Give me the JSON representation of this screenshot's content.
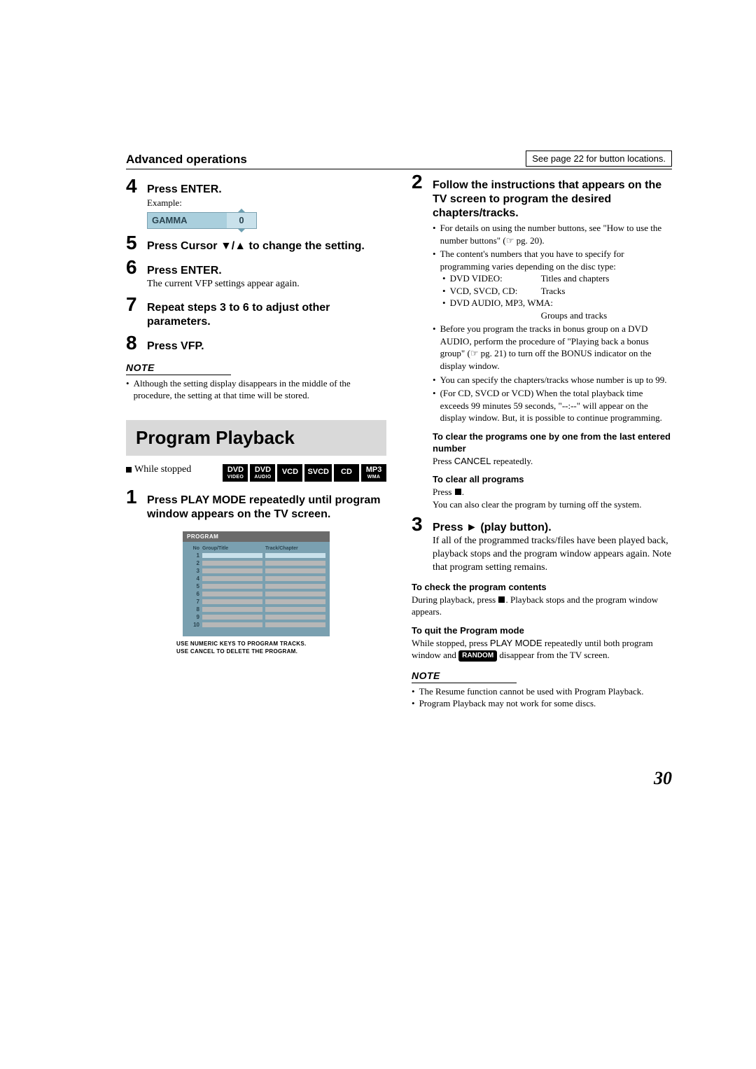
{
  "header": {
    "section": "Advanced operations",
    "button_ref": "See page 22 for button locations."
  },
  "left": {
    "steps": {
      "s4_title": "Press ENTER.",
      "s4_example_label": "Example:",
      "s4_gamma_label": "GAMMA",
      "s4_gamma_value": "0",
      "s5_title": "Press Cursor ▼/▲ to change the setting.",
      "s6_title": "Press ENTER.",
      "s6_body": "The current VFP settings appear again.",
      "s7_title": "Repeat steps 3 to 6 to adjust other parameters.",
      "s8_title": "Press VFP."
    },
    "note_label": "NOTE",
    "note_text": "Although the setting display disappears in the middle of the procedure, the setting at that time will be stored.",
    "program": {
      "box_title": "Program Playback",
      "while_stopped": "While stopped",
      "badges": {
        "dvd_video_top": "DVD",
        "dvd_video_sub": "VIDEO",
        "dvd_audio_top": "DVD",
        "dvd_audio_sub": "AUDIO",
        "vcd": "VCD",
        "svcd": "SVCD",
        "cd": "CD",
        "mp3_top": "MP3",
        "mp3_sub": "WMA"
      },
      "s1_title": "Press PLAY MODE repeatedly until program window appears on the TV screen.",
      "screen": {
        "header": "PROGRAM",
        "col_no": "No",
        "col_group": "Group/Title",
        "col_track": "Track/Chapter",
        "rows": [
          "1",
          "2",
          "3",
          "4",
          "5",
          "6",
          "7",
          "8",
          "9",
          "10"
        ]
      },
      "hint1": "USE NUMERIC KEYS TO PROGRAM TRACKS.",
      "hint2": "USE CANCEL TO DELETE THE PROGRAM."
    }
  },
  "right": {
    "s2_title": "Follow the instructions that appears on the TV screen to program the desired chapters/tracks.",
    "b1": "For details on using the number buttons, see \"How to use the number buttons\" (☞ pg. 20).",
    "b2": "The content's numbers that you have to specify for programming varies depending on the disc type:",
    "disc1_l": "DVD VIDEO:",
    "disc1_r": "Titles and chapters",
    "disc2_l": "VCD, SVCD, CD:",
    "disc2_r": "Tracks",
    "disc3_l": "DVD AUDIO, MP3, WMA:",
    "disc3_r": "Groups and tracks",
    "b3": "Before you program the tracks in bonus group on a DVD AUDIO, perform the procedure of \"Playing back a bonus group\" (☞ pg. 21) to turn off the BONUS indicator on the display window.",
    "b4": "You can specify the chapters/tracks whose number is up to 99.",
    "b5": "(For CD, SVCD or VCD) When the total playback time exceeds 99 minutes 59 seconds, \"--:--\" will appear on the display window. But, it is possible to continue programming.",
    "clear_one_head": "To clear the programs one by one from the last entered number",
    "clear_one_body_a": "Press ",
    "clear_one_body_b": "CANCEL",
    "clear_one_body_c": " repeatedly.",
    "clear_all_head": "To clear all programs",
    "clear_all_a": "Press ",
    "clear_all_b": ".",
    "clear_all_c": "You can also clear the program by turning off the system.",
    "s3_title": "Press ► (play button).",
    "s3_body": "If all of the programmed tracks/files have been played back, playback stops and the program window appears again. Note that program setting remains.",
    "check_head": "To check the program contents",
    "check_body_a": "During playback, press ",
    "check_body_b": ". Playback stops and the program window appears.",
    "quit_head": "To quit the Program mode",
    "quit_a": "While stopped, press ",
    "quit_b": "PLAY MODE",
    "quit_c": " repeatedly until both program window and ",
    "quit_random": "RANDOM",
    "quit_d": " disappear from the TV screen.",
    "note_label": "NOTE",
    "note1": "The Resume function cannot be used with Program Playback.",
    "note2": "Program Playback may not work for some discs."
  },
  "page_number": "30"
}
